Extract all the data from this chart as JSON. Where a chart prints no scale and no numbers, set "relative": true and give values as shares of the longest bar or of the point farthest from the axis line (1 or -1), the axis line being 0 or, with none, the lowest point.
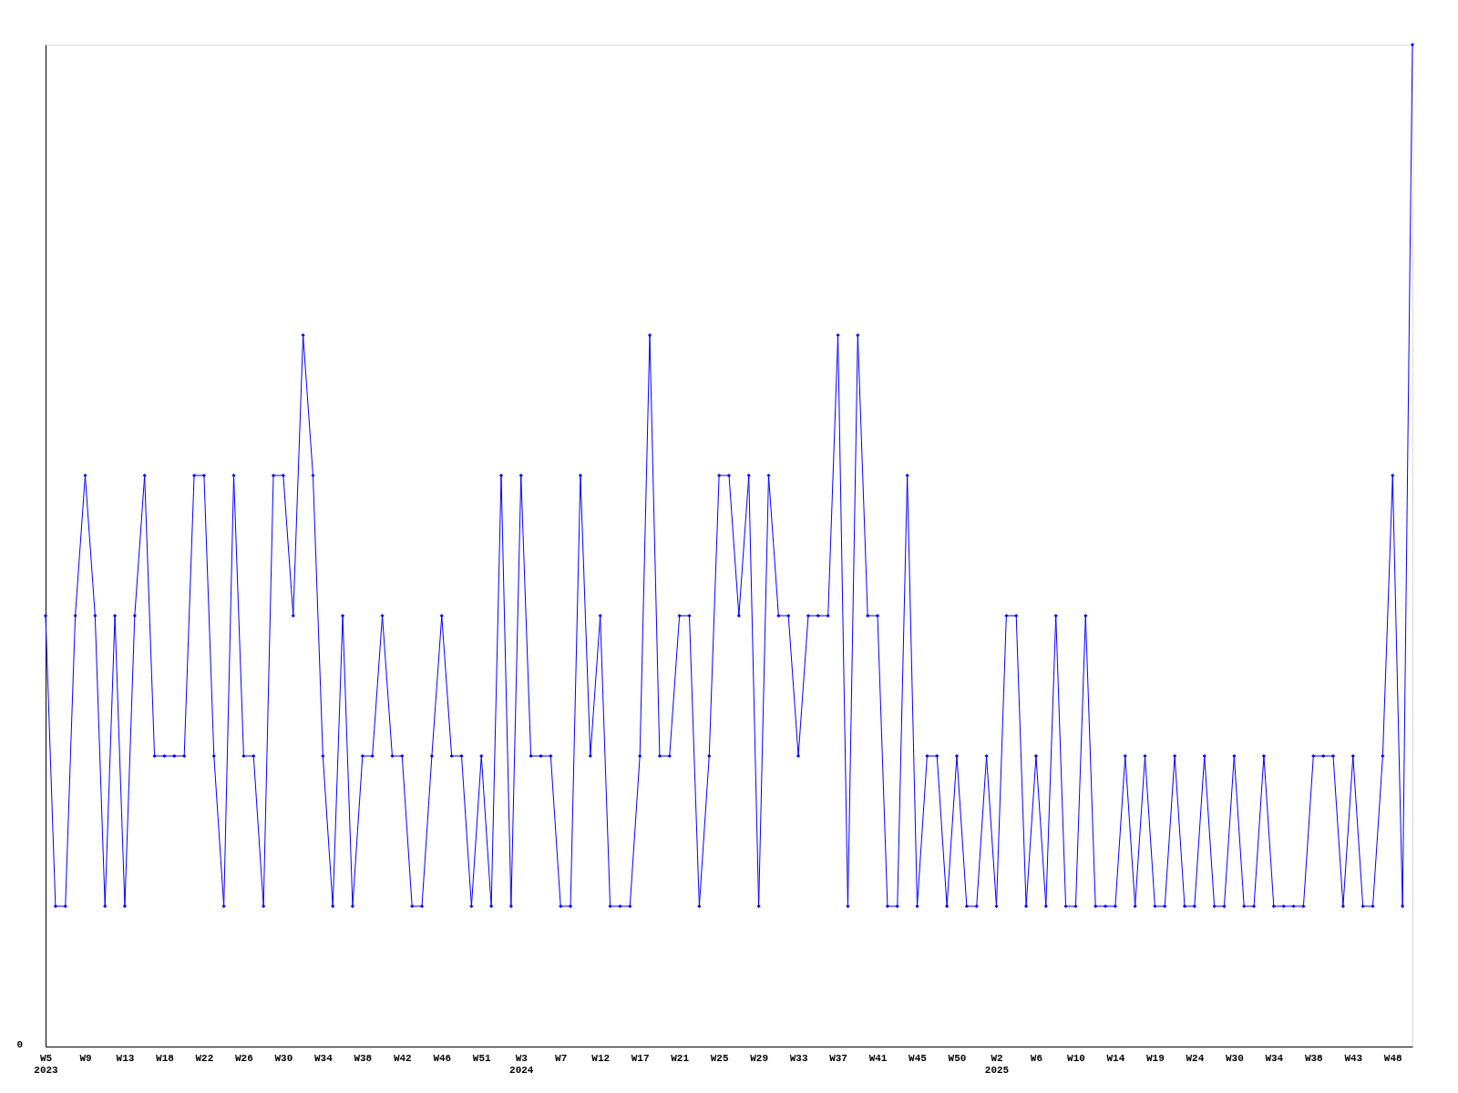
{
  "chart_data": {
    "type": "line",
    "relative": true,
    "color": "#0000ff",
    "marker": "diamond",
    "line_style": "solid",
    "grid": false,
    "categories": [
      "W5\n2023",
      null,
      null,
      null,
      "W9",
      null,
      null,
      null,
      "W13",
      null,
      null,
      null,
      "W18",
      null,
      null,
      null,
      "W22",
      null,
      null,
      null,
      "W26",
      null,
      null,
      null,
      "W30",
      null,
      null,
      null,
      "W34",
      null,
      null,
      null,
      "W38",
      null,
      null,
      null,
      "W42",
      null,
      null,
      null,
      "W46",
      null,
      null,
      null,
      "W51",
      null,
      null,
      null,
      "W3\n2024",
      null,
      null,
      null,
      "W7",
      null,
      null,
      null,
      "W12",
      null,
      null,
      null,
      "W17",
      null,
      null,
      null,
      "W21",
      null,
      null,
      null,
      "W25",
      null,
      null,
      null,
      "W29",
      null,
      null,
      null,
      "W33",
      null,
      null,
      null,
      "W37",
      null,
      null,
      null,
      "W41",
      null,
      null,
      null,
      "W45",
      null,
      null,
      null,
      "W50",
      null,
      null,
      null,
      "W2\n2025",
      null,
      null,
      null,
      "W6",
      null,
      null,
      null,
      "W10",
      null,
      null,
      null,
      "W14",
      null,
      null,
      null,
      "W19",
      null,
      null,
      null,
      "W24",
      null,
      null,
      null,
      "W30",
      null,
      null,
      null,
      "W34",
      null,
      null,
      null,
      "W38",
      null,
      null,
      null,
      "W43",
      null,
      null,
      null,
      "W48",
      null,
      null
    ],
    "values": [
      0.43,
      0.14,
      0.14,
      0.43,
      0.57,
      0.43,
      0.14,
      0.43,
      0.14,
      0.43,
      0.57,
      0.29,
      0.29,
      0.29,
      0.29,
      0.57,
      0.57,
      0.29,
      0.14,
      0.57,
      0.29,
      0.29,
      0.14,
      0.57,
      0.57,
      0.43,
      0.71,
      0.57,
      0.29,
      0.14,
      0.43,
      0.14,
      0.29,
      0.29,
      0.43,
      0.29,
      0.29,
      0.14,
      0.14,
      0.29,
      0.43,
      0.29,
      0.29,
      0.14,
      0.29,
      0.14,
      0.57,
      0.14,
      0.57,
      0.29,
      0.29,
      0.29,
      0.14,
      0.14,
      0.57,
      0.29,
      0.43,
      0.14,
      0.14,
      0.14,
      0.29,
      0.71,
      0.29,
      0.29,
      0.43,
      0.43,
      0.14,
      0.29,
      0.57,
      0.57,
      0.43,
      0.57,
      0.14,
      0.57,
      0.43,
      0.43,
      0.29,
      0.43,
      0.43,
      0.43,
      0.71,
      0.14,
      0.71,
      0.43,
      0.43,
      0.14,
      0.14,
      0.57,
      0.14,
      0.29,
      0.29,
      0.14,
      0.29,
      0.14,
      0.14,
      0.29,
      0.14,
      0.43,
      0.43,
      0.14,
      0.29,
      0.14,
      0.43,
      0.14,
      0.14,
      0.43,
      0.14,
      0.14,
      0.14,
      0.29,
      0.14,
      0.29,
      0.14,
      0.14,
      0.29,
      0.14,
      0.14,
      0.29,
      0.14,
      0.14,
      0.29,
      0.14,
      0.14,
      0.29,
      0.14,
      0.14,
      0.14,
      0.14,
      0.29,
      0.29,
      0.29,
      0.14,
      0.29,
      0.14,
      0.14,
      0.29,
      0.57,
      0.14,
      1
    ],
    "annotations": [
      "0"
    ]
  }
}
